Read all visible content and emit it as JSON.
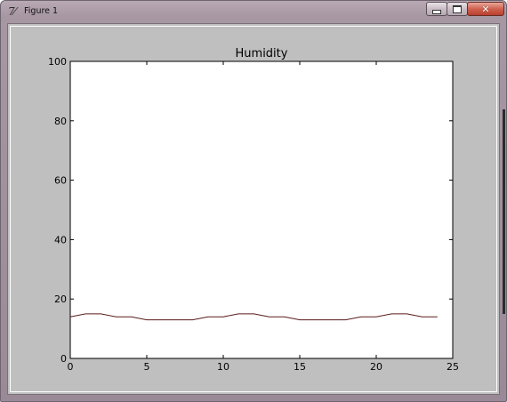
{
  "window": {
    "title": "Figure 1",
    "icon": "matplotlib-figure-icon",
    "controls": {
      "minimize_icon": "minimize-icon",
      "maximize_icon": "maximize-icon",
      "close_glyph": "✕"
    }
  },
  "chart_data": {
    "type": "line",
    "title": "Humidity",
    "xlabel": "",
    "ylabel": "",
    "xlim": [
      0,
      25
    ],
    "ylim": [
      0,
      100
    ],
    "x_ticks": [
      0,
      5,
      10,
      15,
      20,
      25
    ],
    "y_ticks": [
      0,
      20,
      40,
      60,
      80,
      100
    ],
    "grid": false,
    "series": [
      {
        "color": "#5a1a1a",
        "x": [
          0,
          1,
          2,
          3,
          4,
          5,
          6,
          7,
          8,
          9,
          10,
          11,
          12,
          13,
          14,
          15,
          16,
          17,
          18,
          19,
          20,
          21,
          22,
          23,
          24
        ],
        "y": [
          14,
          15,
          15,
          14,
          14,
          13,
          13,
          13,
          13,
          14,
          14,
          15,
          15,
          14,
          14,
          13,
          13,
          13,
          13,
          14,
          14,
          15,
          15,
          14,
          14
        ]
      }
    ]
  },
  "colors": {
    "client_bg": "#bfbfbf",
    "axes_bg": "#ffffff",
    "line": "#5a1a1a"
  }
}
